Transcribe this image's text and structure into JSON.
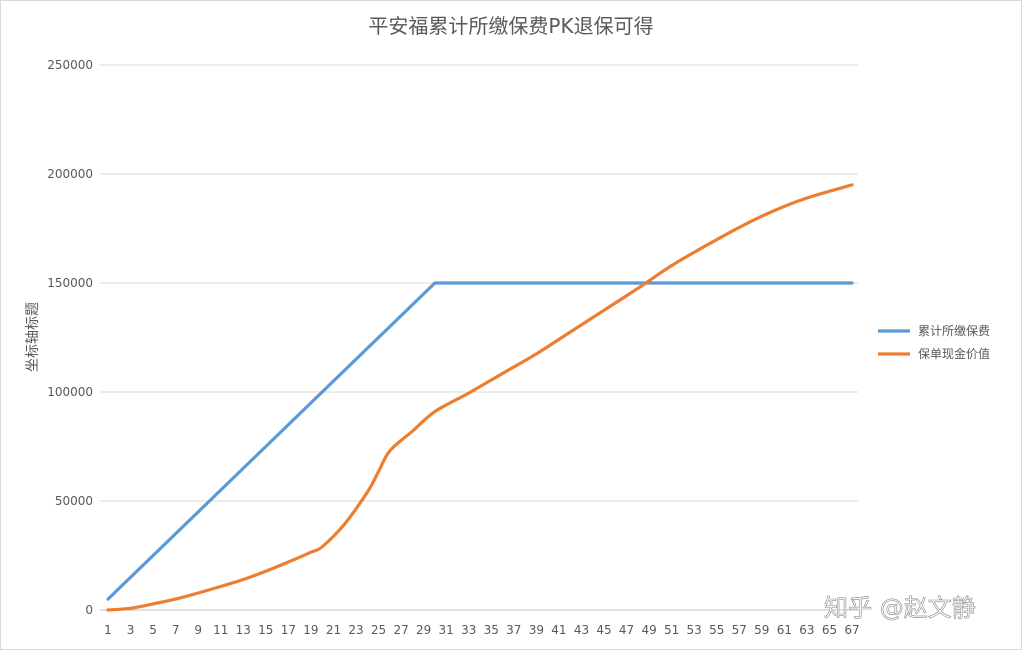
{
  "chart_data": {
    "type": "line",
    "title": "平安福累计所缴保费PK退保可得",
    "xlabel": "",
    "ylabel": "坐标轴标题",
    "ylim": [
      0,
      250000
    ],
    "yticks": [
      "0",
      "50000",
      "100000",
      "150000",
      "200000",
      "250000"
    ],
    "xlim": [
      1,
      67
    ],
    "xticks": [
      "1",
      "3",
      "5",
      "7",
      "9",
      "11",
      "13",
      "15",
      "17",
      "19",
      "21",
      "23",
      "25",
      "27",
      "29",
      "31",
      "33",
      "35",
      "37",
      "39",
      "41",
      "43",
      "45",
      "47",
      "49",
      "51",
      "53",
      "55",
      "57",
      "59",
      "61",
      "63",
      "65",
      "67"
    ],
    "grid": true,
    "legend_position": "right",
    "series": [
      {
        "name": "累计所缴保费",
        "color": "#5B9BD5",
        "x": [
          1,
          30,
          67
        ],
        "values": [
          5000,
          150000,
          150000
        ]
      },
      {
        "name": "保单现金价值",
        "color": "#ED7D31",
        "x": [
          1,
          3,
          5,
          7,
          9,
          11,
          13,
          15,
          17,
          19,
          20,
          22,
          24,
          25,
          26,
          28,
          30,
          33,
          36,
          39,
          42,
          45,
          48,
          51,
          54,
          57,
          60,
          63,
          67
        ],
        "values": [
          0,
          800,
          2800,
          5000,
          7800,
          10800,
          14000,
          17800,
          22000,
          26500,
          29000,
          39500,
          54000,
          63500,
          73000,
          82000,
          91000,
          99500,
          108500,
          117500,
          127500,
          137500,
          147500,
          158000,
          167000,
          175500,
          183000,
          189000,
          195000
        ]
      }
    ]
  },
  "watermark": {
    "text": "知乎 @赵文静"
  }
}
